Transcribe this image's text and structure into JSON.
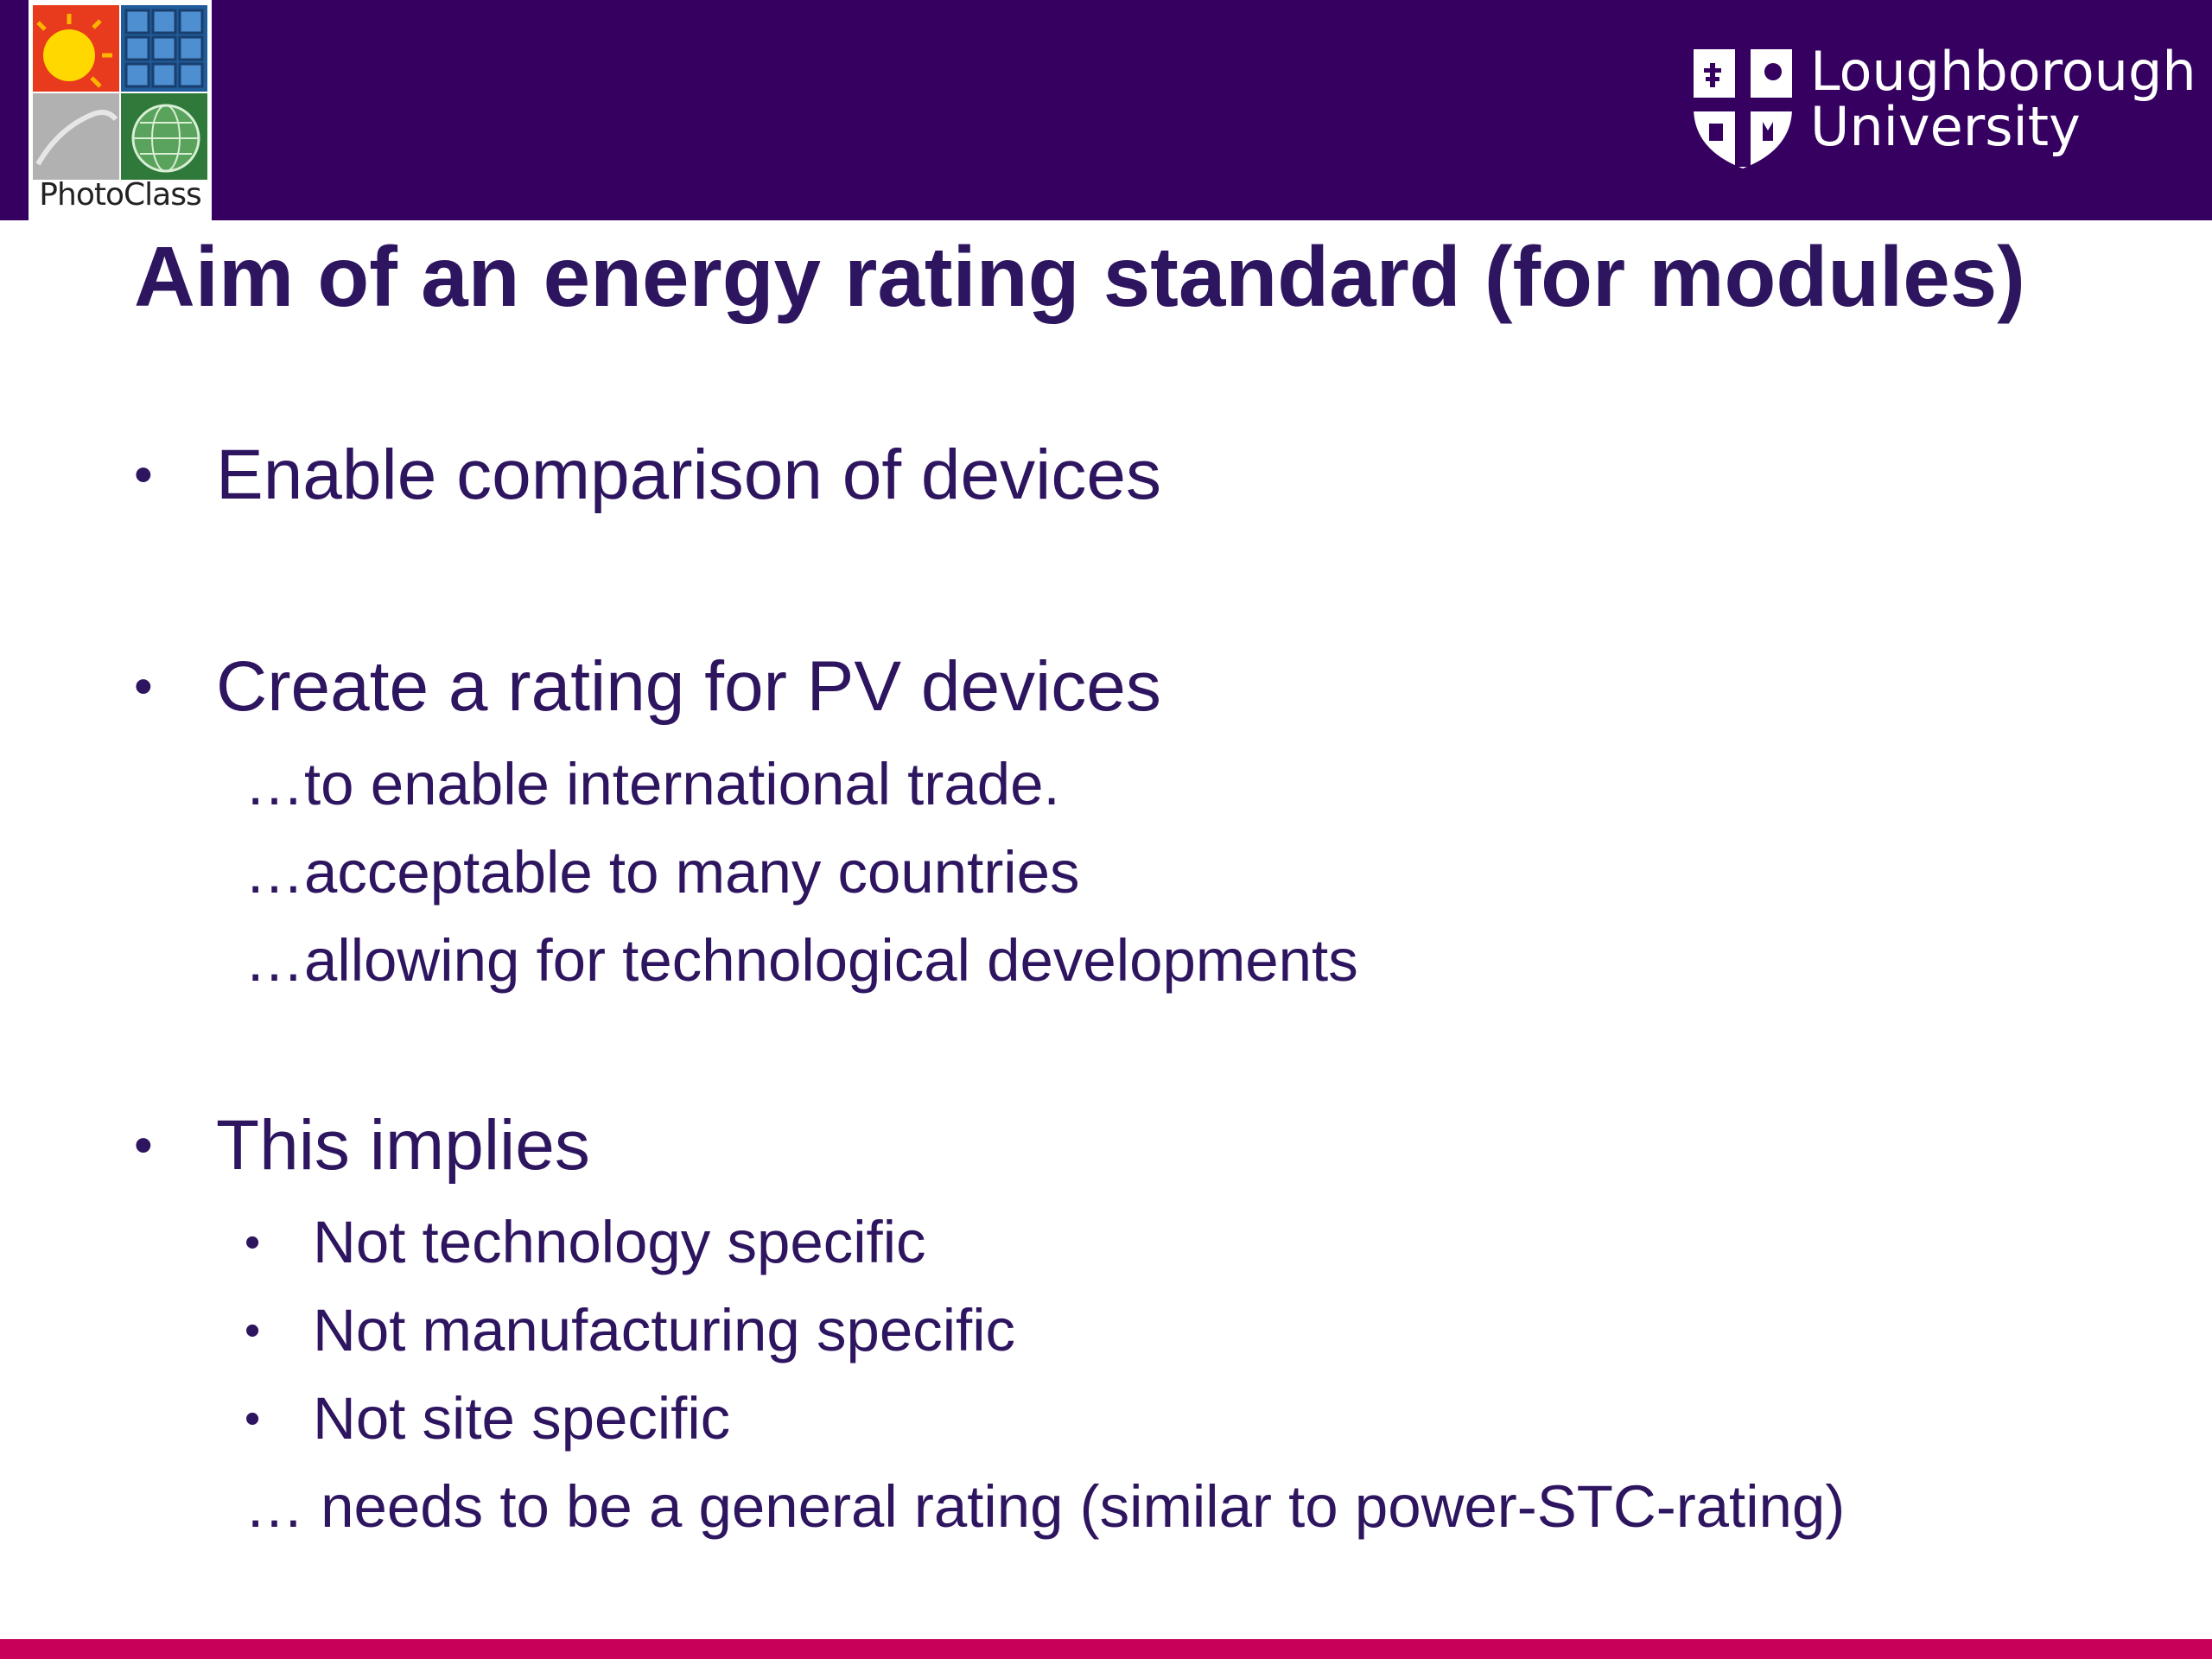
{
  "header": {
    "photoclass_logo_label": "PhotoClass",
    "university_name_line1": "Loughborough",
    "university_name_line2": "University"
  },
  "slide": {
    "title": "Aim of an energy rating standard (for modules)",
    "bullets": [
      {
        "text": "Enable comparison of devices"
      },
      {
        "text": "Create a rating for PV devices",
        "continuations": [
          "…to enable international trade.",
          "…acceptable to many countries",
          "…allowing for technological developments"
        ]
      },
      {
        "text": "This implies",
        "sub_bullets": [
          "Not technology specific",
          "Not manufacturing specific",
          "Not site specific"
        ],
        "conclusion": "… needs to be a general rating (similar to power-STC-rating)"
      }
    ],
    "bullet_symbol": "•"
  },
  "colors": {
    "header_purple": "#350060",
    "text_purple": "#2e1560",
    "accent_magenta": "#c8005a"
  }
}
